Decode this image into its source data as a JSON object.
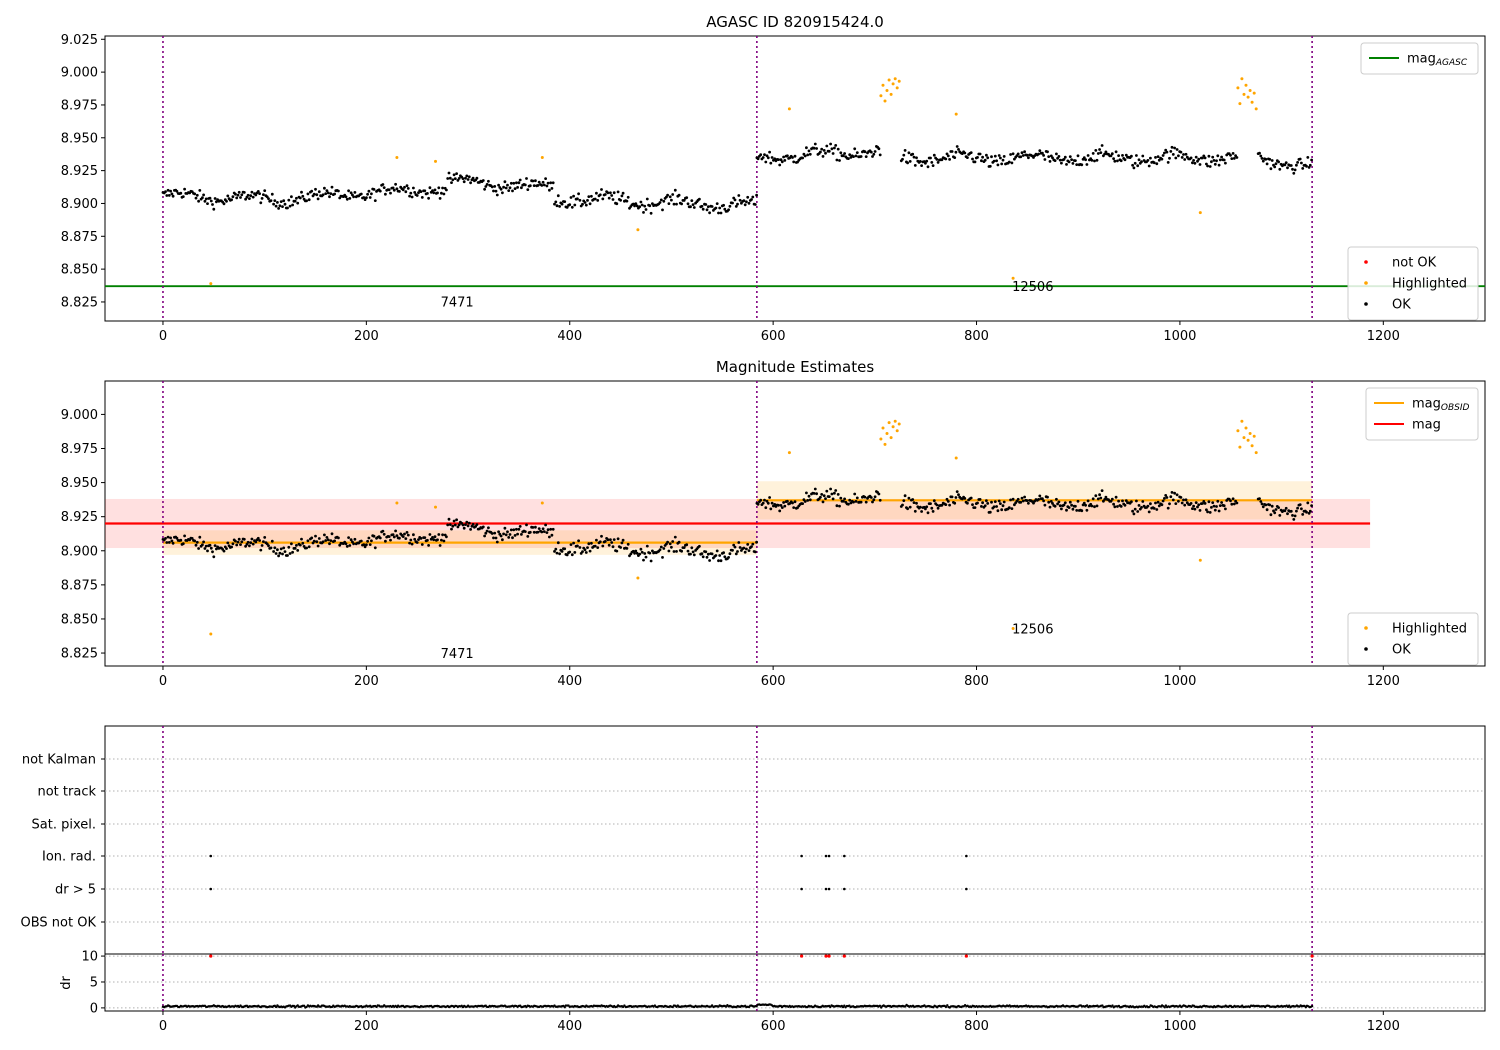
{
  "chart_data": [
    {
      "type": "scatter",
      "title": "AGASC ID 820915424.0",
      "xlabel": "",
      "ylabel": "",
      "xlim": [
        -57,
        1300
      ],
      "ylim": [
        8.8105,
        9.0275
      ],
      "xticks": [
        0,
        200,
        400,
        600,
        800,
        1000,
        1200
      ],
      "yticks": [
        8.825,
        8.85,
        8.875,
        8.9,
        8.925,
        8.95,
        8.975,
        9.0,
        9.025
      ],
      "ytick_labels": [
        "8.825",
        "8.850",
        "8.875",
        "8.900",
        "8.925",
        "8.950",
        "8.975",
        "9.000",
        "9.025"
      ],
      "vlines": [
        0,
        584,
        1130
      ],
      "hlines": [
        {
          "name": "mag",
          "sub": "AGASC",
          "y": 8.837,
          "x": [
            -57,
            1300
          ],
          "color": "#008000"
        }
      ],
      "annotations": [
        {
          "text": "7471",
          "x": 273,
          "y": 8.8215
        },
        {
          "text": "12506",
          "x": 835,
          "y": 8.8335
        }
      ],
      "series": [
        {
          "name": "not OK",
          "color": "#ff0000",
          "points": []
        },
        {
          "name": "Highlighted",
          "color": "#ffa500",
          "points": [
            [
              47,
              8.839
            ],
            [
              230,
              8.935
            ],
            [
              268,
              8.932
            ],
            [
              373,
              8.935
            ],
            [
              467,
              8.88
            ],
            [
              616,
              8.972
            ],
            [
              706,
              8.982
            ],
            [
              708,
              8.99
            ],
            [
              710,
              8.978
            ],
            [
              712,
              8.986
            ],
            [
              714,
              8.994
            ],
            [
              716,
              8.983
            ],
            [
              718,
              8.991
            ],
            [
              720,
              8.995
            ],
            [
              722,
              8.988
            ],
            [
              724,
              8.993
            ],
            [
              780,
              8.968
            ],
            [
              836,
              8.843
            ],
            [
              1020,
              8.893
            ],
            [
              1057,
              8.988
            ],
            [
              1059,
              8.976
            ],
            [
              1061,
              8.995
            ],
            [
              1063,
              8.983
            ],
            [
              1065,
              8.99
            ],
            [
              1067,
              8.981
            ],
            [
              1069,
              8.986
            ],
            [
              1071,
              8.977
            ],
            [
              1073,
              8.984
            ],
            [
              1075,
              8.972
            ]
          ]
        },
        {
          "name": "OK",
          "color": "#000000",
          "segments": [
            {
              "x0": 0,
              "x1": 110,
              "y0": 8.906,
              "y1": 8.903,
              "spread": 0.008
            },
            {
              "x0": 110,
              "x1": 280,
              "y0": 8.903,
              "y1": 8.912,
              "spread": 0.008
            },
            {
              "x0": 280,
              "x1": 385,
              "y0": 8.917,
              "y1": 8.912,
              "spread": 0.008
            },
            {
              "x0": 385,
              "x1": 584,
              "y0": 8.904,
              "y1": 8.898,
              "spread": 0.009
            },
            {
              "x0": 584,
              "x1": 706,
              "y0": 8.935,
              "y1": 8.94,
              "spread": 0.009
            },
            {
              "x0": 726,
              "x1": 1057,
              "y0": 8.934,
              "y1": 8.935,
              "spread": 0.009
            },
            {
              "x0": 1077,
              "x1": 1130,
              "y0": 8.935,
              "y1": 8.927,
              "spread": 0.008
            }
          ]
        }
      ],
      "legends": [
        {
          "position": "top-right",
          "entries": [
            {
              "label": "mag",
              "sub": "AGASC",
              "kind": "line",
              "color": "#008000"
            }
          ]
        },
        {
          "position": "bottom-right",
          "entries": [
            {
              "label": "not OK",
              "kind": "dot",
              "color": "#ff0000"
            },
            {
              "label": "Highlighted",
              "kind": "dot",
              "color": "#ffa500"
            },
            {
              "label": "OK",
              "kind": "dot",
              "color": "#000000"
            }
          ]
        }
      ]
    },
    {
      "type": "scatter",
      "title": "Magnitude Estimates",
      "xlabel": "",
      "ylabel": "",
      "xlim": [
        -57,
        1300
      ],
      "ylim": [
        8.8155,
        9.0245
      ],
      "xticks": [
        0,
        200,
        400,
        600,
        800,
        1000,
        1200
      ],
      "yticks": [
        8.825,
        8.85,
        8.875,
        8.9,
        8.925,
        8.95,
        8.975,
        9.0
      ],
      "ytick_labels": [
        "8.825",
        "8.850",
        "8.875",
        "8.900",
        "8.925",
        "8.950",
        "8.975",
        "9.000"
      ],
      "vlines": [
        0,
        584,
        1130
      ],
      "bands": [
        {
          "x": [
            -57,
            1187
          ],
          "y": [
            8.902,
            8.938
          ],
          "color": "#ff0000",
          "opacity": 0.12
        },
        {
          "x": [
            0,
            584
          ],
          "y": [
            8.897,
            8.915
          ],
          "color": "#ffa500",
          "opacity": 0.14
        },
        {
          "x": [
            584,
            1130
          ],
          "y": [
            8.923,
            8.951
          ],
          "color": "#ffa500",
          "opacity": 0.14
        }
      ],
      "lines": [
        {
          "name": "mag",
          "sub": "OBSID",
          "color": "#ffa500",
          "segments": [
            {
              "x": [
                0,
                584
              ],
              "y": 8.906
            },
            {
              "x": [
                584,
                1130
              ],
              "y": 8.937
            }
          ]
        },
        {
          "name": "mag",
          "color": "#ff0000",
          "segments": [
            {
              "x": [
                -57,
                1187
              ],
              "y": 8.92
            }
          ]
        }
      ],
      "annotations": [
        {
          "text": "7471",
          "x": 273,
          "y": 8.8215
        },
        {
          "text": "12506",
          "x": 835,
          "y": 8.8395
        }
      ],
      "series": [
        {
          "name": "Highlighted",
          "color": "#ffa500",
          "points": "same_as_panel_1"
        },
        {
          "name": "OK",
          "color": "#000000",
          "points": "same_as_panel_1"
        }
      ],
      "legends": [
        {
          "position": "top-right",
          "entries": [
            {
              "label": "mag",
              "sub": "OBSID",
              "kind": "line",
              "color": "#ffa500"
            },
            {
              "label": "mag",
              "kind": "line",
              "color": "#ff0000"
            }
          ]
        },
        {
          "position": "bottom-right",
          "entries": [
            {
              "label": "Highlighted",
              "kind": "dot",
              "color": "#ffa500"
            },
            {
              "label": "OK",
              "kind": "dot",
              "color": "#000000"
            }
          ]
        }
      ]
    },
    {
      "type": "scatter",
      "title": "",
      "xlabel": "",
      "ylabel": "",
      "xlim": [
        -57,
        1300
      ],
      "vlines": [
        0,
        584,
        1130
      ],
      "categories": [
        "not Kalman",
        "not track",
        "Sat. pixel.",
        "Ion. rad.",
        "dr > 5",
        "OBS not OK"
      ],
      "flags": {
        "Ion. rad.": [
          47,
          628,
          652,
          655,
          670,
          790
        ],
        "dr > 5": [
          47,
          628,
          652,
          655,
          670,
          790
        ]
      }
    },
    {
      "type": "scatter",
      "title": "",
      "xlabel": "",
      "ylabel": "dr",
      "xlim": [
        -57,
        1300
      ],
      "ylim": [
        -0.6,
        10.4
      ],
      "yticks": [
        0,
        5,
        10
      ],
      "xticks": [
        0,
        200,
        400,
        600,
        800,
        1000,
        1200
      ],
      "vlines": [
        0,
        584,
        1130
      ],
      "series": [
        {
          "name": "dr",
          "color": "#000000",
          "baseline": 0.3,
          "spread": 0.3,
          "x": [
            0,
            1130
          ]
        },
        {
          "name": "dr > 10",
          "color": "#ff0000",
          "points": [
            [
              47,
              10
            ],
            [
              628,
              10
            ],
            [
              652,
              10
            ],
            [
              655,
              10
            ],
            [
              670,
              10
            ],
            [
              790,
              10
            ],
            [
              1130,
              10
            ]
          ]
        }
      ]
    }
  ]
}
